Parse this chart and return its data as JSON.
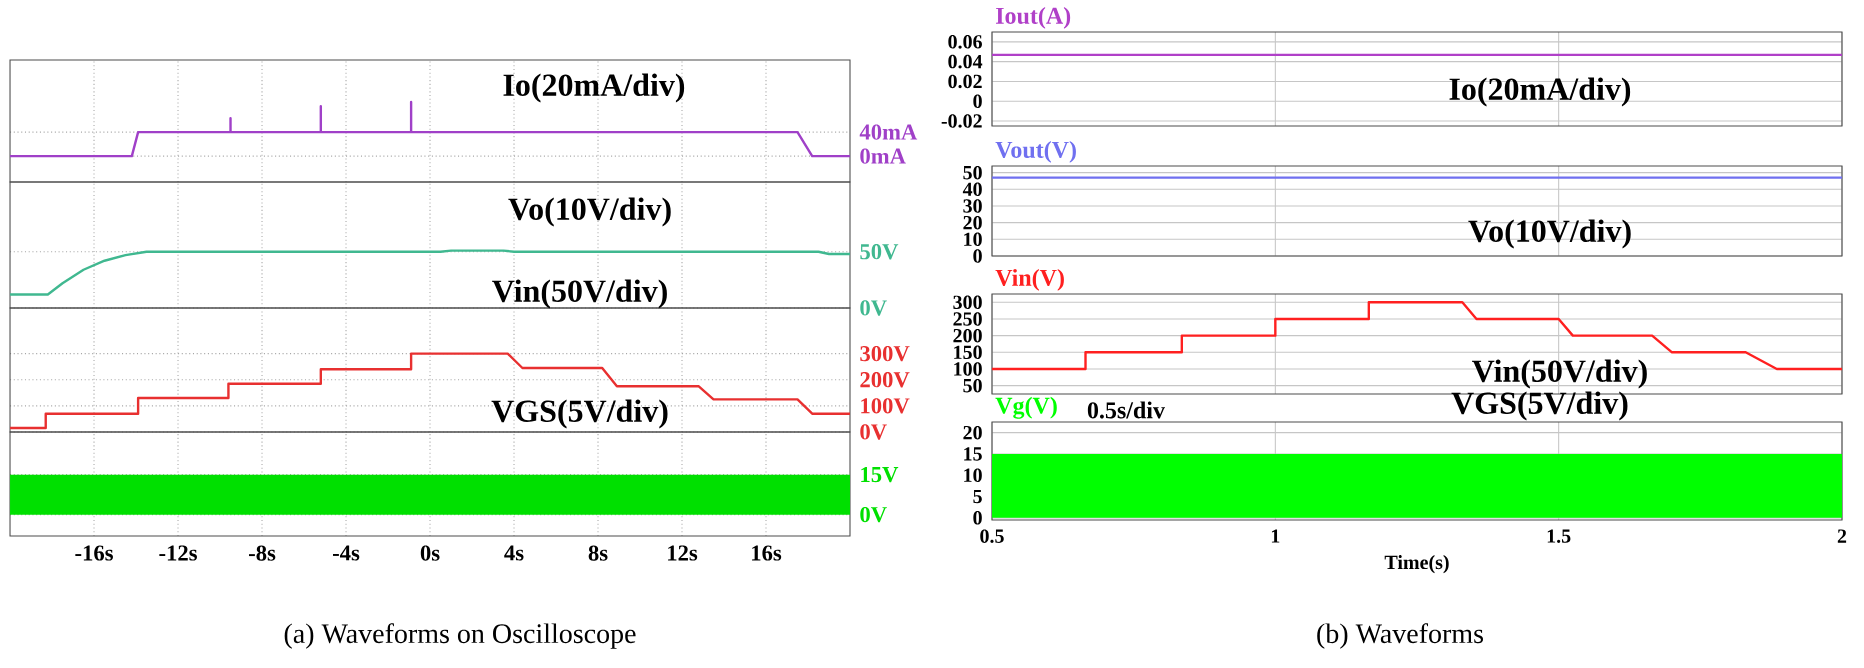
{
  "chart_data": [
    {
      "type": "line",
      "color": "#a040c8",
      "xlim": [
        -20,
        20
      ],
      "ylim": [
        -43,
        160
      ],
      "grid": true,
      "tick_labels": "y",
      "xticks": [
        -16,
        -12,
        -8,
        -4,
        0,
        4,
        8,
        12,
        16
      ],
      "yticks": [
        {
          "value": 0,
          "label": "0mA"
        },
        {
          "value": 40,
          "label": "40mA"
        }
      ],
      "x": [
        -20,
        -14.2,
        -13.9,
        -9.5,
        -9.5,
        -9.5,
        -5.2,
        -5.2,
        -5.2,
        -0.9,
        -0.9,
        -0.9,
        17.5,
        18.2,
        20
      ],
      "values": [
        0,
        0,
        40,
        40,
        63,
        40,
        40,
        83,
        40,
        40,
        90,
        40,
        40,
        0,
        0
      ],
      "annotations": [
        "Io(20mA/div)"
      ]
    },
    {
      "type": "line",
      "color": "#40b890",
      "xlim": [
        -20,
        20
      ],
      "ylim": [
        0,
        112
      ],
      "grid": true,
      "tick_labels": "y",
      "xticks": [
        -16,
        -12,
        -8,
        -4,
        0,
        4,
        8,
        12,
        16
      ],
      "yticks": [
        {
          "value": 0,
          "label": "0V"
        },
        {
          "value": 50,
          "label": "50V"
        }
      ],
      "x": [
        -20,
        -18.2,
        -17.5,
        -16.5,
        -15.5,
        -14.5,
        -13.5,
        0.5,
        1,
        3.5,
        4,
        18.5,
        19,
        20
      ],
      "values": [
        12,
        12,
        22,
        34,
        42,
        47,
        50,
        50,
        51,
        51,
        50,
        50,
        48,
        48
      ],
      "annotations": [
        "Vo(10V/div)"
      ]
    },
    {
      "type": "line",
      "color": "#e83030",
      "xlim": [
        -20,
        20
      ],
      "ylim": [
        0,
        475
      ],
      "grid": true,
      "tick_labels": "y",
      "xticks": [
        -16,
        -12,
        -8,
        -4,
        0,
        4,
        8,
        12,
        16
      ],
      "yticks": [
        {
          "value": 0,
          "label": "0V"
        },
        {
          "value": 100,
          "label": "100V"
        },
        {
          "value": 200,
          "label": "200V"
        },
        {
          "value": 300,
          "label": "300V"
        }
      ],
      "x": [
        -20,
        -18.3,
        -18.3,
        -13.9,
        -13.9,
        -9.6,
        -9.6,
        -5.2,
        -5.2,
        -0.9,
        -0.9,
        3.7,
        4.4,
        8.2,
        8.9,
        12.8,
        13.5,
        17.5,
        18.2,
        20
      ],
      "values": [
        15,
        15,
        70,
        70,
        130,
        130,
        185,
        185,
        240,
        240,
        300,
        300,
        245,
        245,
        175,
        175,
        125,
        125,
        70,
        70
      ],
      "annotations": [
        "Vin(50V/div)"
      ]
    },
    {
      "type": "area",
      "color": "#00e000",
      "xlim": [
        -20,
        20
      ],
      "ylim": [
        -8,
        31
      ],
      "grid": true,
      "xticks": [
        {
          "value": -16,
          "label": "-16s"
        },
        {
          "value": -12,
          "label": "-12s"
        },
        {
          "value": -8,
          "label": "-8s"
        },
        {
          "value": -4,
          "label": "-4s"
        },
        {
          "value": 0,
          "label": "0s"
        },
        {
          "value": 4,
          "label": "4s"
        },
        {
          "value": 8,
          "label": "8s"
        },
        {
          "value": 12,
          "label": "12s"
        },
        {
          "value": 16,
          "label": "16s"
        }
      ],
      "yticks": [
        {
          "value": 0,
          "label": "0V"
        },
        {
          "value": 15,
          "label": "15V"
        }
      ],
      "x": [
        -20,
        20
      ],
      "values": [
        15,
        15
      ],
      "annotations": [
        "VGS(5V/div)",
        "(a)  Waveforms on Oscilloscope"
      ]
    },
    {
      "type": "line",
      "title": "Iout(A)",
      "color": "#b040c8",
      "xlim": [
        0.5,
        2
      ],
      "ylim": [
        -0.025,
        0.07
      ],
      "grid": true,
      "tick_labels": "y",
      "xticks": [
        0.5,
        1,
        1.5,
        2
      ],
      "yticks": [
        -0.02,
        0,
        0.02,
        0.04,
        0.06
      ],
      "x": [
        0.5,
        2
      ],
      "values": [
        0.047,
        0.047
      ],
      "annotations": [
        "Io(20mA/div)"
      ]
    },
    {
      "type": "line",
      "title": "Vout(V)",
      "color": "#7070f0",
      "xlim": [
        0.5,
        2
      ],
      "ylim": [
        0,
        54
      ],
      "grid": true,
      "tick_labels": "y",
      "xticks": [
        0.5,
        1,
        1.5,
        2
      ],
      "yticks": [
        0,
        10,
        20,
        30,
        40,
        50
      ],
      "x": [
        0.5,
        2
      ],
      "values": [
        47,
        47
      ],
      "annotations": [
        "Vo(10V/div)"
      ]
    },
    {
      "type": "line",
      "title": "Vin(V)",
      "color": "#ff2020",
      "xlim": [
        0.5,
        2
      ],
      "ylim": [
        25,
        325
      ],
      "grid": true,
      "tick_labels": "y",
      "xticks": [
        0.5,
        1,
        1.5,
        2
      ],
      "yticks": [
        50,
        100,
        150,
        200,
        250,
        300
      ],
      "x": [
        0.5,
        0.665,
        0.665,
        0.835,
        0.835,
        1.0,
        1.0,
        1.165,
        1.165,
        1.33,
        1.355,
        1.5,
        1.525,
        1.665,
        1.7,
        1.83,
        1.885,
        2
      ],
      "values": [
        100,
        100,
        150,
        150,
        200,
        200,
        250,
        250,
        300,
        300,
        250,
        250,
        200,
        200,
        150,
        150,
        100,
        100
      ],
      "annotations": [
        "Vin(50V/div)"
      ]
    },
    {
      "type": "area",
      "title": "Vg(V)",
      "xlabel": "Time(s)",
      "color": "#00ff00",
      "xlim": [
        0.5,
        2
      ],
      "ylim": [
        -0.5,
        22.5
      ],
      "grid": true,
      "xticks": [
        0.5,
        1,
        1.5,
        2
      ],
      "yticks": [
        0,
        5,
        10,
        15,
        20
      ],
      "x": [
        0.5,
        2
      ],
      "values": [
        15,
        15
      ],
      "annotations": [
        "VGS(5V/div)",
        "0.5s/div",
        "(b)  Waveforms"
      ]
    }
  ]
}
